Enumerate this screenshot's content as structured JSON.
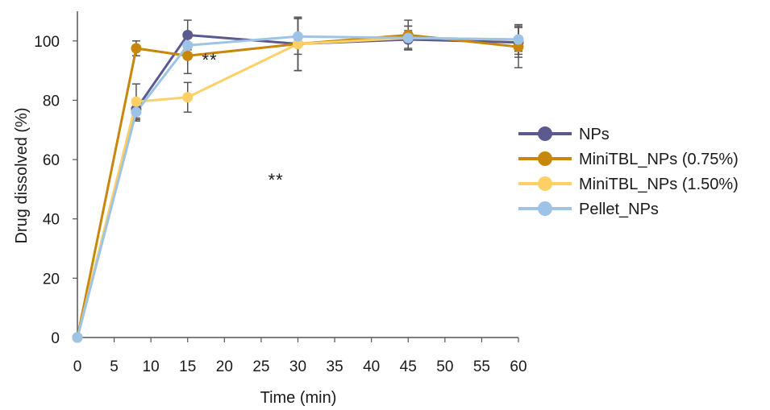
{
  "chart_data": {
    "type": "line",
    "xlabel": "Time (min)",
    "ylabel": "Drug dissolved (%)",
    "xlim": [
      0,
      60
    ],
    "ylim": [
      0,
      110
    ],
    "x_ticks": [
      0,
      5,
      10,
      15,
      20,
      25,
      30,
      35,
      40,
      45,
      50,
      55,
      60
    ],
    "y_ticks": [
      0,
      20,
      40,
      60,
      80,
      100
    ],
    "grid": false,
    "legend_position": "right",
    "series": [
      {
        "name": "NPs",
        "color": "#5b5a8f",
        "x": [
          0,
          8,
          15,
          30,
          45,
          60
        ],
        "y": [
          0,
          77,
          102,
          99,
          100.5,
          99.5
        ],
        "error": [
          0,
          3,
          5,
          9,
          3,
          5
        ]
      },
      {
        "name": "MiniTBL_NPs (0.75%)",
        "color": "#c8860a",
        "x": [
          0,
          8,
          15,
          30,
          45,
          60
        ],
        "y": [
          0,
          97.5,
          95,
          99,
          102,
          98
        ],
        "error": [
          0,
          2.5,
          6,
          9,
          5,
          7
        ]
      },
      {
        "name": "MiniTBL_NPs (1.50%)",
        "color": "#ffd066",
        "x": [
          0,
          8,
          15,
          30,
          45,
          60
        ],
        "y": [
          0,
          79.5,
          81,
          99,
          101,
          100.5
        ],
        "error": [
          0,
          6,
          5,
          9,
          4,
          4
        ]
      },
      {
        "name": "Pellet_NPs",
        "color": "#9dc3e6",
        "x": [
          0,
          8,
          15,
          30,
          45,
          60
        ],
        "y": [
          0,
          76,
          98.5,
          101.5,
          101,
          100.5
        ],
        "error": [
          0,
          3,
          3,
          6,
          4,
          5
        ]
      }
    ],
    "annotations": [
      {
        "text": "**",
        "x": 18,
        "y": 91.5
      },
      {
        "text": "**",
        "x": 27,
        "y": 51
      }
    ]
  }
}
